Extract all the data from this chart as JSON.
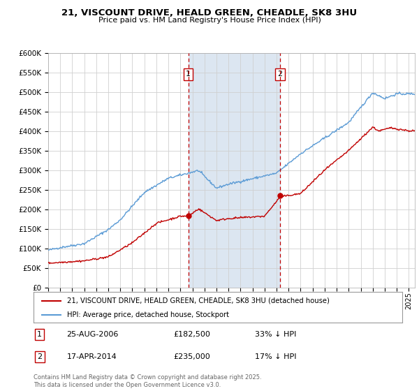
{
  "title": "21, VISCOUNT DRIVE, HEALD GREEN, CHEADLE, SK8 3HU",
  "subtitle": "Price paid vs. HM Land Registry's House Price Index (HPI)",
  "legend_line1": "21, VISCOUNT DRIVE, HEALD GREEN, CHEADLE, SK8 3HU (detached house)",
  "legend_line2": "HPI: Average price, detached house, Stockport",
  "annotation1_label": "1",
  "annotation1_date": "25-AUG-2006",
  "annotation1_price": "£182,500",
  "annotation1_hpi": "33% ↓ HPI",
  "annotation2_label": "2",
  "annotation2_date": "17-APR-2014",
  "annotation2_price": "£235,000",
  "annotation2_hpi": "17% ↓ HPI",
  "footer": "Contains HM Land Registry data © Crown copyright and database right 2025.\nThis data is licensed under the Open Government Licence v3.0.",
  "sale1_x": 2006.65,
  "sale1_y": 182500,
  "sale2_x": 2014.29,
  "sale2_y": 235000,
  "ylim": [
    0,
    600000
  ],
  "xlim": [
    1995,
    2025.5
  ],
  "hpi_color": "#5b9bd5",
  "price_color": "#c00000",
  "grid_color": "#d0d0d0",
  "background_color": "#ffffff",
  "shade_color": "#dce6f1"
}
